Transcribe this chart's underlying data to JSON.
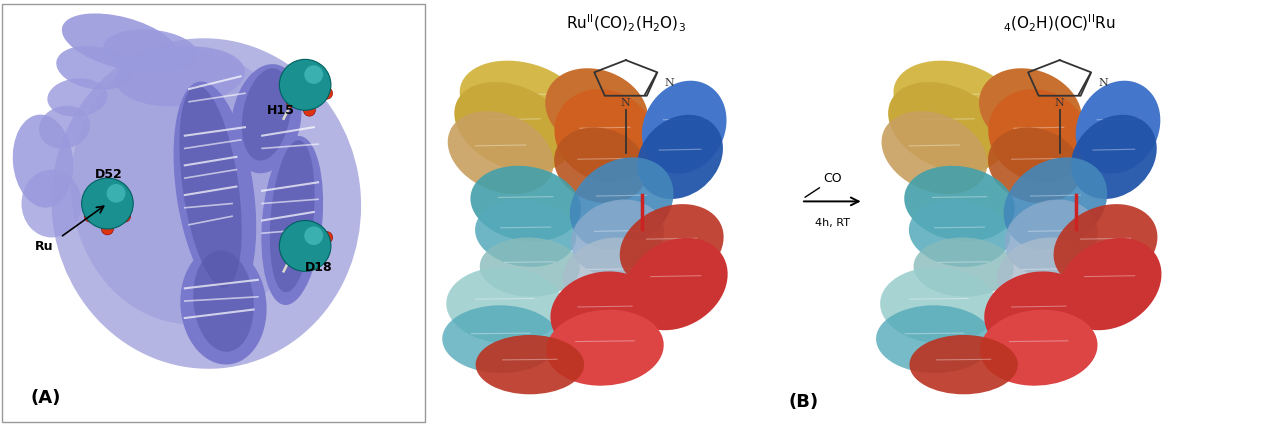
{
  "figure_width": 12.64,
  "figure_height": 4.24,
  "dpi": 100,
  "bg": "#ffffff",
  "panel_A_label": "(A)",
  "panel_B_label": "(B)",
  "panel_A_border": "#999999",
  "ru_color": "#1a9090",
  "ru_highlight": "#55cccc",
  "ru_edge": "#006060",
  "protein_A_blue": "#7878cc",
  "protein_A_light": "#9999dd",
  "protein_A_dark": "#5555aa",
  "protein_A_white": "#ccccee",
  "label_H15": "H15",
  "label_D52": "D52",
  "label_D18": "D18",
  "label_Ru": "Ru",
  "title_left": "Ru$^{\\rm II}$(CO)$_2$(H$_2$O)$_3$",
  "title_right": "$_4$(O$_2$H)(OC)$^{\\rm II}$Ru",
  "arrow_top": "CO",
  "arrow_bottom": "4h, RT",
  "imidazole_color": "#333333",
  "red_stick": "#cc2222",
  "colors_left_protein": {
    "yellow_top": "#d4b84a",
    "yellow_mid": "#c8a838",
    "tan": "#c8a060",
    "orange_brown": "#c87030",
    "orange": "#d06020",
    "orange_dark": "#b85520",
    "blue_mid": "#4477cc",
    "blue_dark": "#2255aa",
    "teal_light": "#55aabb",
    "teal": "#44a0aa",
    "light_blue": "#88aacc",
    "pale_blue": "#aabccc",
    "pale_teal": "#88bbbb",
    "red_dark": "#bb3322",
    "red": "#cc3333",
    "red_bright": "#dd4444",
    "light_cyan": "#99cccc",
    "steel_blue": "#4488bb"
  }
}
